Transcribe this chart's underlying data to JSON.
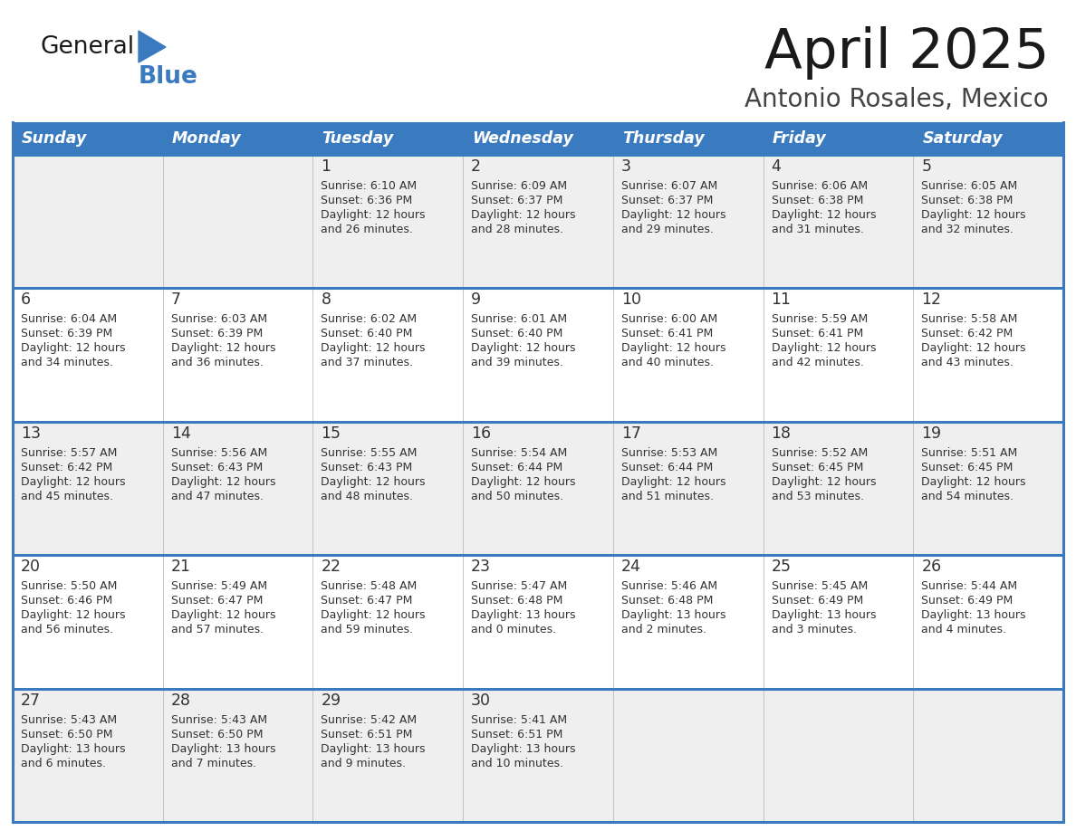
{
  "title": "April 2025",
  "subtitle": "Antonio Rosales, Mexico",
  "header_bg": "#3a7abf",
  "header_text_color": "#ffffff",
  "cell_bg_odd": "#efefef",
  "cell_bg_even": "#ffffff",
  "border_color": "#3a7abf",
  "text_color": "#333333",
  "days_of_week": [
    "Sunday",
    "Monday",
    "Tuesday",
    "Wednesday",
    "Thursday",
    "Friday",
    "Saturday"
  ],
  "logo_general_color": "#1a1a1a",
  "logo_blue_color": "#3a7abf",
  "weeks": [
    [
      {
        "day": "",
        "sunrise": "",
        "sunset": "",
        "daylight": ""
      },
      {
        "day": "",
        "sunrise": "",
        "sunset": "",
        "daylight": ""
      },
      {
        "day": "1",
        "sunrise": "Sunrise: 6:10 AM",
        "sunset": "Sunset: 6:36 PM",
        "daylight": "Daylight: 12 hours\nand 26 minutes."
      },
      {
        "day": "2",
        "sunrise": "Sunrise: 6:09 AM",
        "sunset": "Sunset: 6:37 PM",
        "daylight": "Daylight: 12 hours\nand 28 minutes."
      },
      {
        "day": "3",
        "sunrise": "Sunrise: 6:07 AM",
        "sunset": "Sunset: 6:37 PM",
        "daylight": "Daylight: 12 hours\nand 29 minutes."
      },
      {
        "day": "4",
        "sunrise": "Sunrise: 6:06 AM",
        "sunset": "Sunset: 6:38 PM",
        "daylight": "Daylight: 12 hours\nand 31 minutes."
      },
      {
        "day": "5",
        "sunrise": "Sunrise: 6:05 AM",
        "sunset": "Sunset: 6:38 PM",
        "daylight": "Daylight: 12 hours\nand 32 minutes."
      }
    ],
    [
      {
        "day": "6",
        "sunrise": "Sunrise: 6:04 AM",
        "sunset": "Sunset: 6:39 PM",
        "daylight": "Daylight: 12 hours\nand 34 minutes."
      },
      {
        "day": "7",
        "sunrise": "Sunrise: 6:03 AM",
        "sunset": "Sunset: 6:39 PM",
        "daylight": "Daylight: 12 hours\nand 36 minutes."
      },
      {
        "day": "8",
        "sunrise": "Sunrise: 6:02 AM",
        "sunset": "Sunset: 6:40 PM",
        "daylight": "Daylight: 12 hours\nand 37 minutes."
      },
      {
        "day": "9",
        "sunrise": "Sunrise: 6:01 AM",
        "sunset": "Sunset: 6:40 PM",
        "daylight": "Daylight: 12 hours\nand 39 minutes."
      },
      {
        "day": "10",
        "sunrise": "Sunrise: 6:00 AM",
        "sunset": "Sunset: 6:41 PM",
        "daylight": "Daylight: 12 hours\nand 40 minutes."
      },
      {
        "day": "11",
        "sunrise": "Sunrise: 5:59 AM",
        "sunset": "Sunset: 6:41 PM",
        "daylight": "Daylight: 12 hours\nand 42 minutes."
      },
      {
        "day": "12",
        "sunrise": "Sunrise: 5:58 AM",
        "sunset": "Sunset: 6:42 PM",
        "daylight": "Daylight: 12 hours\nand 43 minutes."
      }
    ],
    [
      {
        "day": "13",
        "sunrise": "Sunrise: 5:57 AM",
        "sunset": "Sunset: 6:42 PM",
        "daylight": "Daylight: 12 hours\nand 45 minutes."
      },
      {
        "day": "14",
        "sunrise": "Sunrise: 5:56 AM",
        "sunset": "Sunset: 6:43 PM",
        "daylight": "Daylight: 12 hours\nand 47 minutes."
      },
      {
        "day": "15",
        "sunrise": "Sunrise: 5:55 AM",
        "sunset": "Sunset: 6:43 PM",
        "daylight": "Daylight: 12 hours\nand 48 minutes."
      },
      {
        "day": "16",
        "sunrise": "Sunrise: 5:54 AM",
        "sunset": "Sunset: 6:44 PM",
        "daylight": "Daylight: 12 hours\nand 50 minutes."
      },
      {
        "day": "17",
        "sunrise": "Sunrise: 5:53 AM",
        "sunset": "Sunset: 6:44 PM",
        "daylight": "Daylight: 12 hours\nand 51 minutes."
      },
      {
        "day": "18",
        "sunrise": "Sunrise: 5:52 AM",
        "sunset": "Sunset: 6:45 PM",
        "daylight": "Daylight: 12 hours\nand 53 minutes."
      },
      {
        "day": "19",
        "sunrise": "Sunrise: 5:51 AM",
        "sunset": "Sunset: 6:45 PM",
        "daylight": "Daylight: 12 hours\nand 54 minutes."
      }
    ],
    [
      {
        "day": "20",
        "sunrise": "Sunrise: 5:50 AM",
        "sunset": "Sunset: 6:46 PM",
        "daylight": "Daylight: 12 hours\nand 56 minutes."
      },
      {
        "day": "21",
        "sunrise": "Sunrise: 5:49 AM",
        "sunset": "Sunset: 6:47 PM",
        "daylight": "Daylight: 12 hours\nand 57 minutes."
      },
      {
        "day": "22",
        "sunrise": "Sunrise: 5:48 AM",
        "sunset": "Sunset: 6:47 PM",
        "daylight": "Daylight: 12 hours\nand 59 minutes."
      },
      {
        "day": "23",
        "sunrise": "Sunrise: 5:47 AM",
        "sunset": "Sunset: 6:48 PM",
        "daylight": "Daylight: 13 hours\nand 0 minutes."
      },
      {
        "day": "24",
        "sunrise": "Sunrise: 5:46 AM",
        "sunset": "Sunset: 6:48 PM",
        "daylight": "Daylight: 13 hours\nand 2 minutes."
      },
      {
        "day": "25",
        "sunrise": "Sunrise: 5:45 AM",
        "sunset": "Sunset: 6:49 PM",
        "daylight": "Daylight: 13 hours\nand 3 minutes."
      },
      {
        "day": "26",
        "sunrise": "Sunrise: 5:44 AM",
        "sunset": "Sunset: 6:49 PM",
        "daylight": "Daylight: 13 hours\nand 4 minutes."
      }
    ],
    [
      {
        "day": "27",
        "sunrise": "Sunrise: 5:43 AM",
        "sunset": "Sunset: 6:50 PM",
        "daylight": "Daylight: 13 hours\nand 6 minutes."
      },
      {
        "day": "28",
        "sunrise": "Sunrise: 5:43 AM",
        "sunset": "Sunset: 6:50 PM",
        "daylight": "Daylight: 13 hours\nand 7 minutes."
      },
      {
        "day": "29",
        "sunrise": "Sunrise: 5:42 AM",
        "sunset": "Sunset: 6:51 PM",
        "daylight": "Daylight: 13 hours\nand 9 minutes."
      },
      {
        "day": "30",
        "sunrise": "Sunrise: 5:41 AM",
        "sunset": "Sunset: 6:51 PM",
        "daylight": "Daylight: 13 hours\nand 10 minutes."
      },
      {
        "day": "",
        "sunrise": "",
        "sunset": "",
        "daylight": ""
      },
      {
        "day": "",
        "sunrise": "",
        "sunset": "",
        "daylight": ""
      },
      {
        "day": "",
        "sunrise": "",
        "sunset": "",
        "daylight": ""
      }
    ]
  ]
}
